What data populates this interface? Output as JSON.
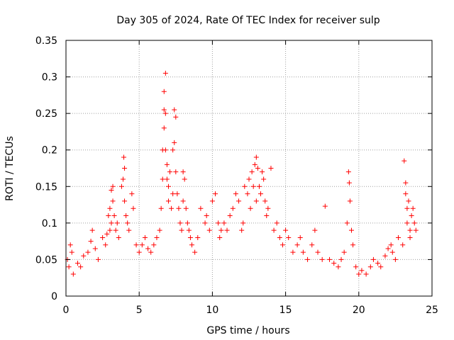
{
  "chart_data": {
    "type": "scatter",
    "title": "Day 305 of 2024, Rate Of TEC Index for receiver sulp",
    "xlabel": "GPS time / hours",
    "ylabel": "ROTI / TECUs",
    "xlim": [
      0,
      25
    ],
    "ylim": [
      0,
      0.35
    ],
    "x_ticks": [
      0,
      5,
      10,
      15,
      20,
      25
    ],
    "x_tick_labels": [
      "0",
      "5",
      "10",
      "15",
      "20",
      "25"
    ],
    "y_ticks": [
      0,
      0.05,
      0.1,
      0.15,
      0.2,
      0.25,
      0.3,
      0.35
    ],
    "y_tick_labels": [
      "0",
      "0.05",
      "0.1",
      "0.15",
      "0.2",
      "0.25",
      "0.3",
      "0.35"
    ],
    "grid": true,
    "marker": "+",
    "marker_color": "#ff0000",
    "series": [
      {
        "name": "ROTI",
        "x": [
          0.1,
          0.2,
          0.3,
          0.4,
          0.5,
          0.8,
          1.0,
          1.2,
          1.5,
          1.7,
          1.8,
          2.0,
          2.2,
          2.5,
          2.7,
          2.8,
          2.9,
          3.0,
          3.0,
          3.1,
          3.1,
          3.2,
          3.2,
          3.3,
          3.4,
          3.5,
          3.6,
          3.8,
          3.9,
          3.95,
          4.0,
          4.0,
          4.1,
          4.2,
          4.3,
          4.5,
          4.6,
          4.8,
          5.0,
          5.2,
          5.4,
          5.6,
          5.8,
          6.0,
          6.2,
          6.4,
          6.5,
          6.6,
          6.6,
          6.7,
          6.7,
          6.7,
          6.8,
          6.8,
          6.8,
          6.9,
          6.9,
          7.0,
          7.0,
          7.1,
          7.2,
          7.3,
          7.3,
          7.4,
          7.4,
          7.5,
          7.5,
          7.6,
          7.7,
          7.8,
          7.9,
          8.0,
          8.0,
          8.1,
          8.2,
          8.3,
          8.4,
          8.5,
          8.6,
          8.8,
          9.0,
          9.2,
          9.5,
          9.6,
          9.8,
          10.0,
          10.2,
          10.4,
          10.5,
          10.6,
          10.8,
          11.0,
          11.2,
          11.4,
          11.6,
          11.8,
          12.0,
          12.1,
          12.2,
          12.4,
          12.5,
          12.6,
          12.7,
          12.8,
          12.9,
          13.0,
          13.0,
          13.1,
          13.2,
          13.3,
          13.4,
          13.5,
          13.6,
          13.7,
          13.8,
          14.0,
          14.2,
          14.4,
          14.6,
          14.8,
          15.0,
          15.2,
          15.5,
          15.8,
          16.0,
          16.2,
          16.5,
          16.8,
          17.0,
          17.2,
          17.5,
          17.7,
          18.0,
          18.3,
          18.6,
          18.8,
          19.0,
          19.2,
          19.3,
          19.35,
          19.4,
          19.5,
          19.6,
          19.8,
          20.0,
          20.2,
          20.5,
          20.8,
          21.0,
          21.3,
          21.5,
          21.8,
          22.0,
          22.2,
          22.3,
          22.5,
          22.7,
          23.0,
          23.1,
          23.2,
          23.2,
          23.3,
          23.3,
          23.4,
          23.5,
          23.5,
          23.6,
          23.7,
          23.8,
          23.9
        ],
        "y": [
          0.05,
          0.04,
          0.07,
          0.06,
          0.03,
          0.045,
          0.04,
          0.055,
          0.06,
          0.075,
          0.09,
          0.065,
          0.05,
          0.08,
          0.07,
          0.085,
          0.11,
          0.12,
          0.09,
          0.145,
          0.1,
          0.13,
          0.15,
          0.11,
          0.09,
          0.1,
          0.08,
          0.15,
          0.16,
          0.19,
          0.175,
          0.13,
          0.11,
          0.1,
          0.09,
          0.14,
          0.12,
          0.07,
          0.06,
          0.07,
          0.08,
          0.065,
          0.06,
          0.07,
          0.08,
          0.09,
          0.12,
          0.16,
          0.2,
          0.23,
          0.255,
          0.28,
          0.305,
          0.25,
          0.2,
          0.18,
          0.16,
          0.15,
          0.13,
          0.17,
          0.12,
          0.14,
          0.2,
          0.21,
          0.255,
          0.245,
          0.17,
          0.14,
          0.12,
          0.1,
          0.09,
          0.13,
          0.17,
          0.16,
          0.12,
          0.1,
          0.09,
          0.08,
          0.07,
          0.06,
          0.08,
          0.12,
          0.1,
          0.11,
          0.09,
          0.13,
          0.14,
          0.1,
          0.08,
          0.09,
          0.1,
          0.09,
          0.11,
          0.12,
          0.14,
          0.13,
          0.09,
          0.1,
          0.15,
          0.14,
          0.16,
          0.12,
          0.17,
          0.15,
          0.18,
          0.19,
          0.13,
          0.175,
          0.15,
          0.14,
          0.17,
          0.16,
          0.13,
          0.11,
          0.12,
          0.175,
          0.09,
          0.1,
          0.08,
          0.07,
          0.09,
          0.08,
          0.06,
          0.07,
          0.08,
          0.06,
          0.05,
          0.07,
          0.09,
          0.06,
          0.05,
          0.123,
          0.05,
          0.045,
          0.04,
          0.05,
          0.06,
          0.1,
          0.17,
          0.155,
          0.13,
          0.09,
          0.07,
          0.04,
          0.03,
          0.035,
          0.03,
          0.04,
          0.05,
          0.045,
          0.04,
          0.055,
          0.065,
          0.07,
          0.06,
          0.05,
          0.08,
          0.07,
          0.185,
          0.14,
          0.155,
          0.12,
          0.1,
          0.13,
          0.09,
          0.08,
          0.11,
          0.12,
          0.1,
          0.09
        ]
      }
    ]
  }
}
